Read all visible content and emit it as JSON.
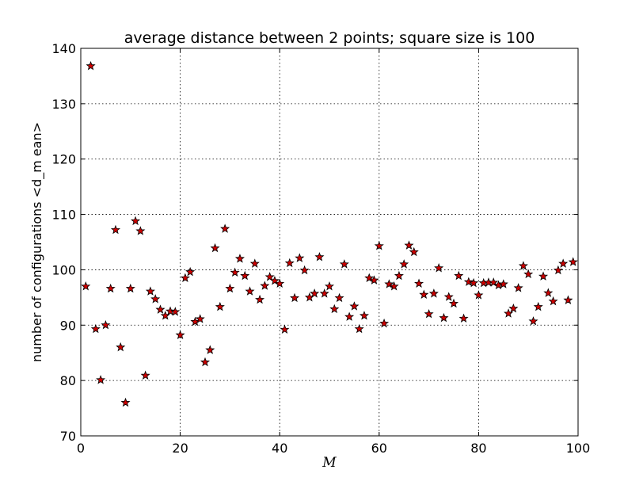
{
  "chart_data": {
    "type": "scatter",
    "title": "average distance between 2 points; square size is 100",
    "xlabel": "M",
    "ylabel": "number of configurations <d_m ean>",
    "xlim": [
      0,
      100
    ],
    "ylim": [
      70,
      140
    ],
    "xticks": [
      0,
      20,
      40,
      60,
      80,
      100
    ],
    "yticks": [
      70,
      80,
      90,
      100,
      110,
      120,
      130,
      140
    ],
    "grid": true,
    "marker": "star",
    "marker_color": "#cc0000",
    "series": [
      {
        "x": [
          1,
          2,
          3,
          4,
          5,
          6,
          7,
          8,
          9,
          10,
          11,
          12,
          13,
          14,
          15,
          16,
          17,
          18,
          19,
          20,
          21,
          22,
          23,
          24,
          25,
          26,
          27,
          28,
          29,
          30,
          31,
          32,
          33,
          34,
          35,
          36,
          37,
          38,
          39,
          40,
          41,
          42,
          43,
          44,
          45,
          46,
          47,
          48,
          49,
          50,
          51,
          52,
          53,
          54,
          55,
          56,
          57,
          58,
          59,
          60,
          61,
          62,
          63,
          64,
          65,
          66,
          67,
          68,
          69,
          70,
          71,
          72,
          73,
          74,
          75,
          76,
          77,
          78,
          79,
          80,
          81,
          82,
          83,
          84,
          85,
          86,
          87,
          88,
          89,
          90,
          91,
          92,
          93,
          94,
          95,
          96,
          97,
          98,
          99
        ],
        "y": [
          97.0,
          136.8,
          89.3,
          80.1,
          90.0,
          96.6,
          107.2,
          86.0,
          76.0,
          96.6,
          108.8,
          107.0,
          80.9,
          96.1,
          94.7,
          92.8,
          91.7,
          92.5,
          92.4,
          88.2,
          98.5,
          99.6,
          90.6,
          91.1,
          83.3,
          85.5,
          103.9,
          93.3,
          107.4,
          96.6,
          99.5,
          102.0,
          98.9,
          96.1,
          101.1,
          94.6,
          97.1,
          98.7,
          98.0,
          97.5,
          89.2,
          101.2,
          94.9,
          102.1,
          99.9,
          95.0,
          95.7,
          102.3,
          95.7,
          97.0,
          92.9,
          94.9,
          101.0,
          91.5,
          93.4,
          89.3,
          91.7,
          98.5,
          98.1,
          104.3,
          90.3,
          97.4,
          97.0,
          98.9,
          101.0,
          104.4,
          103.2,
          97.5,
          95.5,
          92.0,
          95.7,
          100.3,
          91.3,
          95.1,
          93.9,
          98.9,
          91.2,
          97.8,
          97.6,
          95.4,
          97.6,
          97.7,
          97.7,
          97.2,
          97.4,
          92.1,
          93.0,
          96.7,
          100.7,
          99.2,
          90.7,
          93.3,
          98.8,
          95.8,
          94.3,
          99.9,
          101.1,
          94.5,
          101.4
        ]
      }
    ]
  }
}
